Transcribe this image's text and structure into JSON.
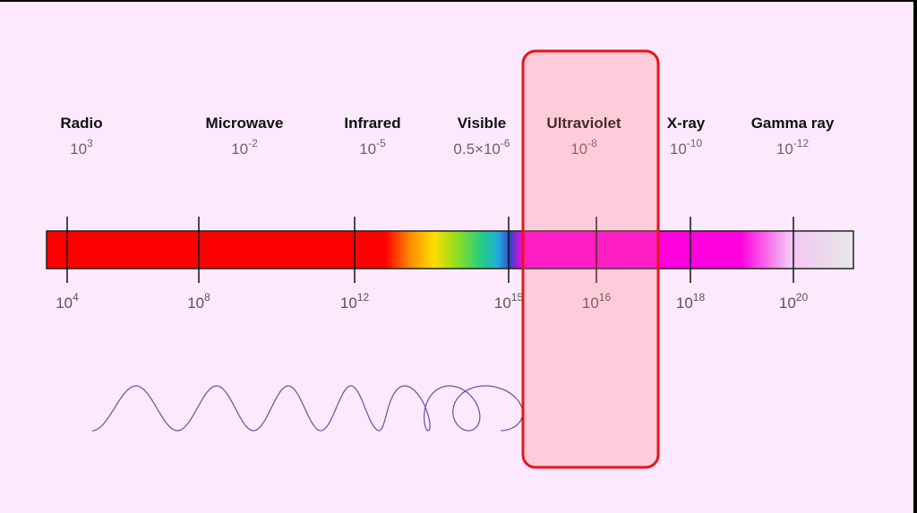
{
  "bands": [
    {
      "name": "Radio",
      "base": "10",
      "exp": "3"
    },
    {
      "name": "Microwave",
      "base": "10",
      "exp": "-2"
    },
    {
      "name": "Infrared",
      "base": "10",
      "exp": "-5"
    },
    {
      "name": "Visible",
      "base": "0.5×10",
      "exp": "-6"
    },
    {
      "name": "Ultraviolet",
      "base": "10",
      "exp": "-8"
    },
    {
      "name": "X-ray",
      "base": "10",
      "exp": "-10"
    },
    {
      "name": "Gamma ray",
      "base": "10",
      "exp": "-12"
    }
  ],
  "ticks": [
    {
      "base": "10",
      "exp": "4"
    },
    {
      "base": "10",
      "exp": "8"
    },
    {
      "base": "10",
      "exp": "12"
    },
    {
      "base": "10",
      "exp": "15"
    },
    {
      "base": "10",
      "exp": "16"
    },
    {
      "base": "10",
      "exp": "18"
    },
    {
      "base": "10",
      "exp": "20"
    }
  ]
}
